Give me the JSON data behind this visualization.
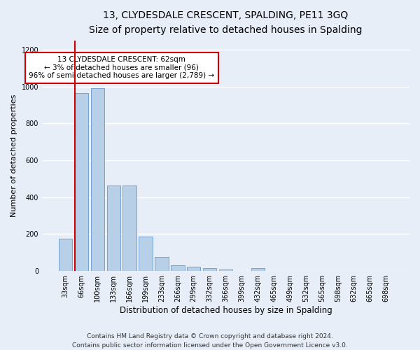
{
  "title1": "13, CLYDESDALE CRESCENT, SPALDING, PE11 3GQ",
  "title2": "Size of property relative to detached houses in Spalding",
  "xlabel": "Distribution of detached houses by size in Spalding",
  "ylabel": "Number of detached properties",
  "categories": [
    "33sqm",
    "66sqm",
    "100sqm",
    "133sqm",
    "166sqm",
    "199sqm",
    "233sqm",
    "266sqm",
    "299sqm",
    "332sqm",
    "366sqm",
    "399sqm",
    "432sqm",
    "465sqm",
    "499sqm",
    "532sqm",
    "565sqm",
    "598sqm",
    "632sqm",
    "665sqm",
    "698sqm"
  ],
  "values": [
    175,
    965,
    990,
    465,
    465,
    185,
    75,
    30,
    22,
    15,
    10,
    0,
    15,
    0,
    0,
    0,
    0,
    0,
    0,
    0,
    0
  ],
  "bar_color": "#b8cfe8",
  "bar_edge_color": "#6699cc",
  "highlight_line_color": "#cc0000",
  "annotation_text": "13 CLYDESDALE CRESCENT: 62sqm\n← 3% of detached houses are smaller (96)\n96% of semi-detached houses are larger (2,789) →",
  "annotation_box_facecolor": "#ffffff",
  "annotation_box_edgecolor": "#cc0000",
  "ylim": [
    0,
    1250
  ],
  "yticks": [
    0,
    200,
    400,
    600,
    800,
    1000,
    1200
  ],
  "footer_text": "Contains HM Land Registry data © Crown copyright and database right 2024.\nContains public sector information licensed under the Open Government Licence v3.0.",
  "background_color": "#e8eef8",
  "plot_bg_color": "#e8eef8",
  "grid_color": "#ffffff",
  "title1_fontsize": 10,
  "title2_fontsize": 9,
  "xlabel_fontsize": 8.5,
  "ylabel_fontsize": 8,
  "tick_fontsize": 7,
  "footer_fontsize": 6.5
}
